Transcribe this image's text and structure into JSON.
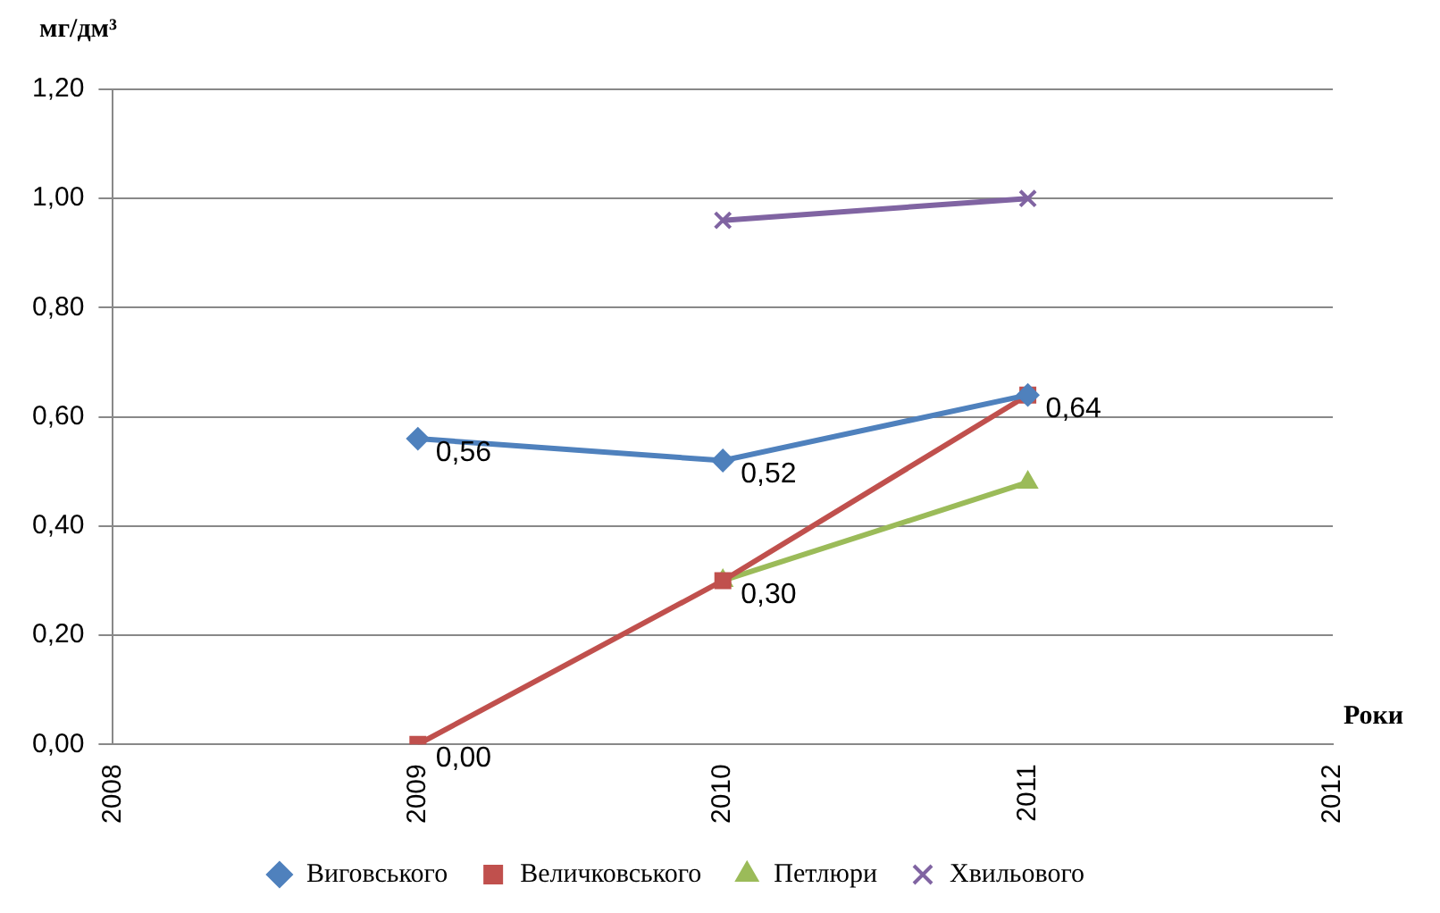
{
  "chart_data": {
    "type": "line",
    "ylabel": "мг/дм³",
    "xlabel": "Роки",
    "x": [
      2009,
      2010,
      2011
    ],
    "xlim": [
      2008,
      2012
    ],
    "xticks": [
      2008,
      2009,
      2010,
      2011,
      2012
    ],
    "ylim": [
      0,
      1.2
    ],
    "yticks": [
      {
        "value": 0,
        "label": "0,00"
      },
      {
        "value": 0.2,
        "label": "0,20"
      },
      {
        "value": 0.4,
        "label": "0,40"
      },
      {
        "value": 0.6,
        "label": "0,60"
      },
      {
        "value": 0.8,
        "label": "0,80"
      },
      {
        "value": 1,
        "label": "1,00"
      },
      {
        "value": 1.2,
        "label": "1,20"
      }
    ],
    "grid": "y",
    "legend": "bottom",
    "line_style": "solid",
    "series": [
      {
        "name": "Виговського",
        "color": "#4f81bd",
        "marker": "diamond",
        "values": [
          0.56,
          0.52,
          0.64
        ],
        "value_labels": [
          "0,56",
          "0,52",
          null
        ]
      },
      {
        "name": "Величковського",
        "color": "#c0504d",
        "marker": "square",
        "values": [
          0,
          0.3,
          0.64
        ],
        "value_labels": [
          "0,00",
          null,
          "0,64"
        ]
      },
      {
        "name": "Петлюри",
        "color": "#9bbb59",
        "marker": "triangle",
        "values": [
          null,
          0.3,
          0.48
        ],
        "value_labels": [
          null,
          "0,30",
          null
        ]
      },
      {
        "name": "Хвильового",
        "color": "#8064a2",
        "marker": "cross",
        "values": [
          null,
          0.96,
          1
        ]
      }
    ]
  }
}
